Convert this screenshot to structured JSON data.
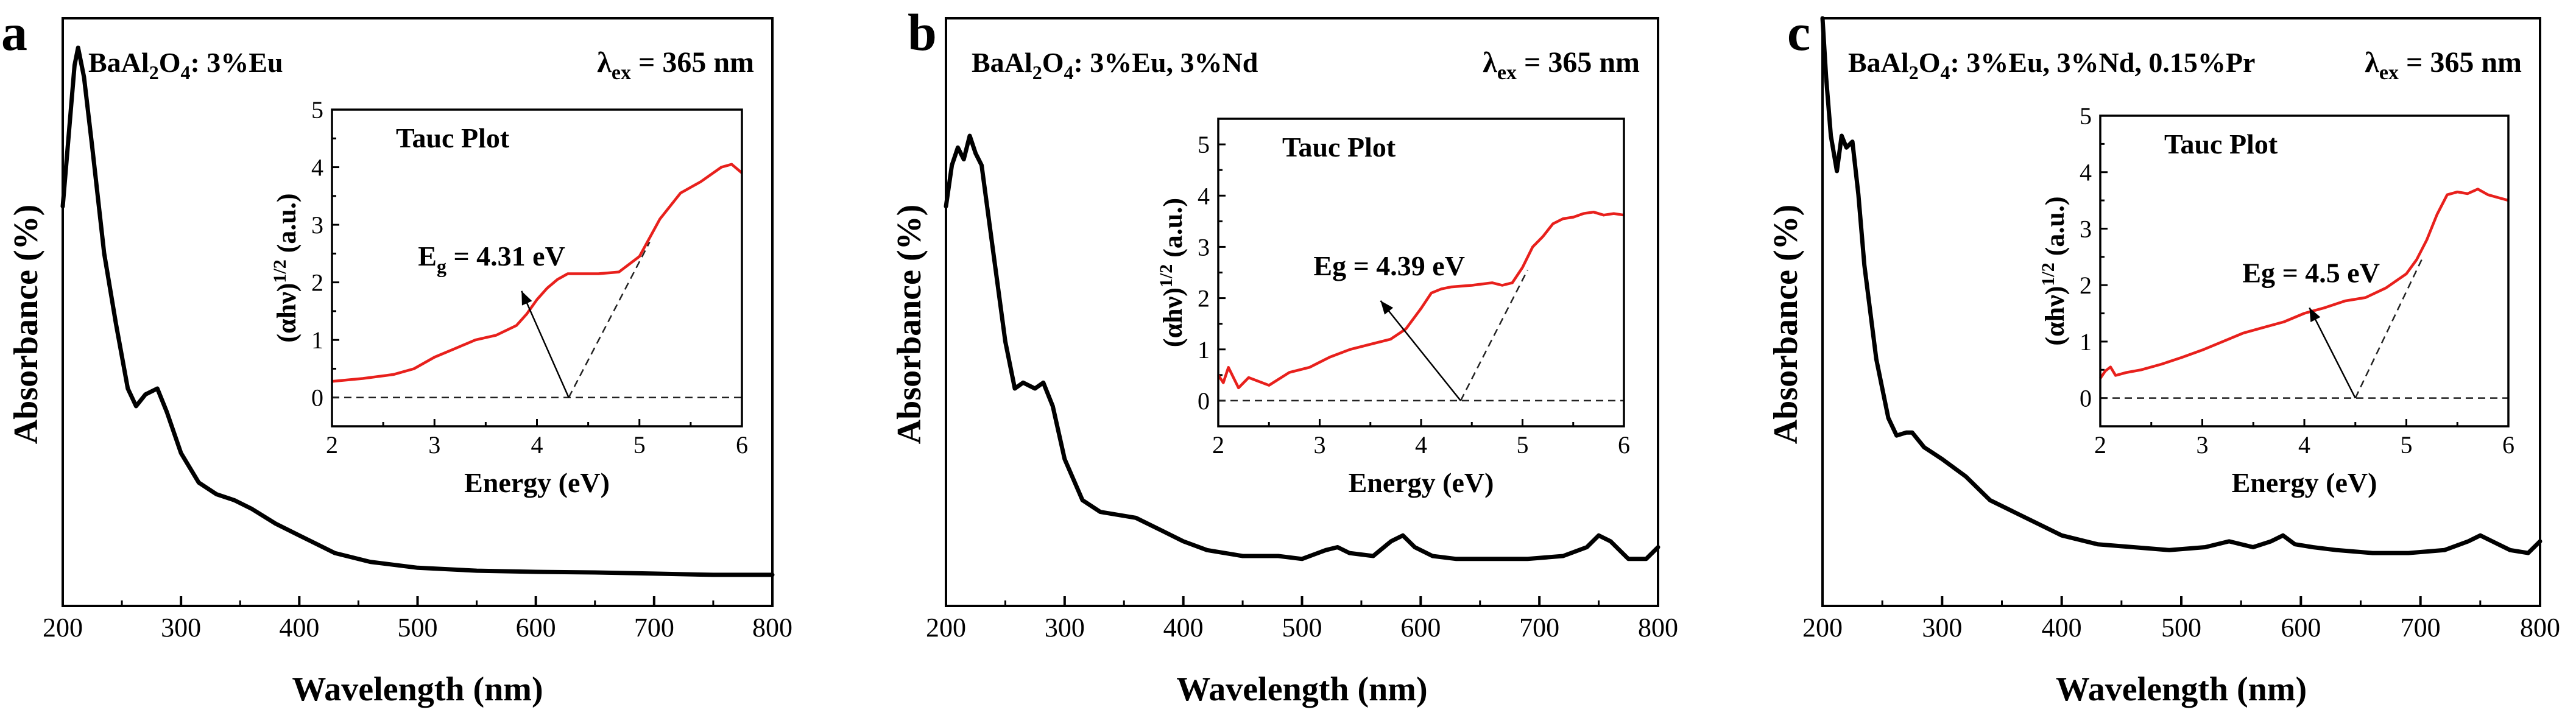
{
  "chart_data": [
    {
      "panel_label": "a",
      "type": "line",
      "composition": {
        "formula": [
          "BaAl",
          "2",
          "O",
          "4"
        ],
        "suffix": ": 3%Eu"
      },
      "excitation": {
        "symbol": "λ",
        "sub": "ex",
        "text": " = 365 nm"
      },
      "xlabel": "Wavelength (nm)",
      "ylabel": "Absorbance (%)",
      "xlim": [
        200,
        800
      ],
      "ylim": [
        0,
        100
      ],
      "xticks": [
        200,
        300,
        400,
        500,
        600,
        700,
        800
      ],
      "series": [
        {
          "name": "absorbance",
          "color": "#000000",
          "x": [
            200,
            205,
            210,
            213,
            218,
            225,
            235,
            245,
            255,
            262,
            270,
            280,
            288,
            300,
            315,
            330,
            345,
            360,
            380,
            400,
            430,
            460,
            500,
            550,
            600,
            650,
            700,
            750,
            800
          ],
          "y": [
            68,
            80,
            92,
            95,
            90,
            78,
            60,
            48,
            37,
            34,
            36,
            37,
            33,
            26,
            21,
            19,
            18,
            16.5,
            14,
            12,
            9,
            7.5,
            6.5,
            6,
            5.8,
            5.7,
            5.5,
            5.3,
            5.3
          ]
        }
      ],
      "inset": {
        "title": "Tauc Plot",
        "xlabel": "Energy (eV)",
        "ylabel": {
          "main": "(αhν)",
          "sup": "1/2",
          "unit": " (a.u.)"
        },
        "xlim": [
          2,
          6
        ],
        "ylim": [
          -0.5,
          5
        ],
        "xticks": [
          2,
          3,
          4,
          5,
          6
        ],
        "yticks": [
          0,
          1,
          2,
          3,
          4,
          5
        ],
        "annotation": {
          "main": "E",
          "sub": "g",
          "rest": " = 4.31 eV"
        },
        "bandgap_ev": 4.31,
        "arrow_tip": [
          3.85,
          1.85
        ],
        "tangent_end": [
          5.1,
          2.7
        ],
        "curve": {
          "color": "#e8201c",
          "x": [
            2,
            2.3,
            2.6,
            2.8,
            3.0,
            3.2,
            3.4,
            3.6,
            3.8,
            3.9,
            4.0,
            4.1,
            4.2,
            4.3,
            4.4,
            4.6,
            4.8,
            5.0,
            5.2,
            5.4,
            5.6,
            5.8,
            5.9,
            6.0
          ],
          "y": [
            0.28,
            0.33,
            0.4,
            0.5,
            0.7,
            0.85,
            1.0,
            1.08,
            1.25,
            1.45,
            1.7,
            1.9,
            2.05,
            2.15,
            2.15,
            2.15,
            2.18,
            2.45,
            3.1,
            3.55,
            3.75,
            4.0,
            4.05,
            3.9
          ]
        }
      }
    },
    {
      "panel_label": "b",
      "type": "line",
      "composition": {
        "formula": [
          "BaAl",
          "2",
          "O",
          "4"
        ],
        "suffix": ": 3%Eu, 3%Nd"
      },
      "excitation": {
        "symbol": "λ",
        "sub": "ex",
        "text": " = 365 nm"
      },
      "xlabel": "Wavelength (nm)",
      "ylabel": "Absorbance (%)",
      "xlim": [
        200,
        800
      ],
      "ylim": [
        0,
        100
      ],
      "xticks": [
        200,
        300,
        400,
        500,
        600,
        700,
        800
      ],
      "series": [
        {
          "name": "absorbance",
          "color": "#000000",
          "x": [
            200,
            205,
            210,
            215,
            220,
            225,
            230,
            240,
            250,
            258,
            265,
            275,
            282,
            290,
            300,
            315,
            330,
            345,
            360,
            380,
            400,
            420,
            450,
            480,
            500,
            520,
            530,
            540,
            560,
            575,
            585,
            595,
            610,
            630,
            660,
            690,
            720,
            740,
            750,
            760,
            775,
            790,
            800
          ],
          "y": [
            68,
            75,
            78,
            76,
            80,
            77,
            75,
            60,
            45,
            37,
            38,
            37,
            38,
            34,
            25,
            18,
            16,
            15.5,
            15,
            13,
            11,
            9.5,
            8.5,
            8.5,
            8,
            9.5,
            10,
            9,
            8.5,
            11,
            12,
            10,
            8.5,
            8,
            8,
            8,
            8.5,
            10,
            12,
            11,
            8,
            8,
            10
          ]
        }
      ],
      "inset": {
        "title": "Tauc Plot",
        "xlabel": "Energy (eV)",
        "ylabel": {
          "main": "(αhν)",
          "sup": "1/2",
          "unit": " (a.u.)"
        },
        "xlim": [
          2,
          6
        ],
        "ylim": [
          -0.5,
          5.5
        ],
        "xticks": [
          2,
          3,
          4,
          5,
          6
        ],
        "yticks": [
          0,
          1,
          2,
          3,
          4,
          5
        ],
        "annotation": {
          "main": "Eg",
          "sub": "",
          "rest": " = 4.39 eV"
        },
        "bandgap_ev": 4.39,
        "arrow_tip": [
          3.6,
          1.95
        ],
        "tangent_end": [
          5.05,
          2.55
        ],
        "curve": {
          "color": "#e8201c",
          "x": [
            2,
            2.05,
            2.1,
            2.2,
            2.3,
            2.5,
            2.7,
            2.9,
            3.1,
            3.3,
            3.5,
            3.7,
            3.85,
            4.0,
            4.1,
            4.2,
            4.3,
            4.5,
            4.7,
            4.8,
            4.9,
            5.0,
            5.1,
            5.2,
            5.3,
            5.4,
            5.5,
            5.6,
            5.7,
            5.8,
            5.9,
            6.0
          ],
          "y": [
            0.5,
            0.35,
            0.65,
            0.25,
            0.45,
            0.3,
            0.55,
            0.65,
            0.85,
            1.0,
            1.1,
            1.2,
            1.4,
            1.8,
            2.1,
            2.18,
            2.22,
            2.25,
            2.3,
            2.25,
            2.3,
            2.6,
            3.0,
            3.2,
            3.45,
            3.55,
            3.58,
            3.65,
            3.68,
            3.62,
            3.65,
            3.62
          ]
        }
      }
    },
    {
      "panel_label": "c",
      "type": "line",
      "composition": {
        "formula": [
          "BaAl",
          "2",
          "O",
          "4"
        ],
        "suffix": ": 3%Eu, 3%Nd, 0.15%Pr"
      },
      "excitation": {
        "symbol": "λ",
        "sub": "ex",
        "text": " = 365 nm"
      },
      "xlabel": "Wavelength (nm)",
      "ylabel": "Absorbance (%)",
      "xlim": [
        200,
        800
      ],
      "ylim": [
        0,
        100
      ],
      "xticks": [
        200,
        300,
        400,
        500,
        600,
        700,
        800
      ],
      "series": [
        {
          "name": "absorbance",
          "color": "#000000",
          "x": [
            200,
            203,
            207,
            212,
            216,
            220,
            225,
            230,
            235,
            245,
            255,
            262,
            270,
            275,
            285,
            300,
            320,
            340,
            360,
            380,
            400,
            430,
            460,
            490,
            520,
            540,
            560,
            575,
            585,
            595,
            610,
            630,
            660,
            690,
            720,
            740,
            750,
            760,
            775,
            790,
            800
          ],
          "y": [
            100,
            90,
            80,
            74,
            80,
            78,
            79,
            70,
            58,
            42,
            32,
            29,
            29.5,
            29.5,
            27,
            25,
            22,
            18,
            16,
            14,
            12,
            10.5,
            10,
            9.5,
            10,
            11,
            10,
            11,
            12,
            10.5,
            10,
            9.5,
            9,
            9,
            9.5,
            11,
            12,
            11,
            9.5,
            9,
            11
          ]
        }
      ],
      "inset": {
        "title": "Tauc Plot",
        "xlabel": "Energy (eV)",
        "ylabel": {
          "main": "(αhν)",
          "sup": "1/2",
          "unit": " (a.u.)"
        },
        "xlim": [
          2,
          6
        ],
        "ylim": [
          -0.5,
          5
        ],
        "xticks": [
          2,
          3,
          4,
          5,
          6
        ],
        "yticks": [
          0,
          1,
          2,
          3,
          4,
          5
        ],
        "annotation": {
          "main": "Eg",
          "sub": "",
          "rest": " = 4.5 eV"
        },
        "bandgap_ev": 4.5,
        "arrow_tip": [
          4.05,
          1.6
        ],
        "tangent_end": [
          5.15,
          2.45
        ],
        "curve": {
          "color": "#e8201c",
          "x": [
            2,
            2.05,
            2.1,
            2.15,
            2.25,
            2.4,
            2.6,
            2.8,
            3.0,
            3.2,
            3.4,
            3.6,
            3.8,
            4.0,
            4.2,
            4.4,
            4.6,
            4.8,
            5.0,
            5.1,
            5.2,
            5.3,
            5.4,
            5.5,
            5.6,
            5.7,
            5.8,
            5.9,
            6.0
          ],
          "y": [
            0.35,
            0.48,
            0.55,
            0.4,
            0.45,
            0.5,
            0.6,
            0.72,
            0.85,
            1.0,
            1.15,
            1.25,
            1.35,
            1.5,
            1.6,
            1.72,
            1.78,
            1.95,
            2.2,
            2.45,
            2.8,
            3.25,
            3.6,
            3.65,
            3.62,
            3.7,
            3.6,
            3.55,
            3.5
          ]
        }
      }
    }
  ]
}
